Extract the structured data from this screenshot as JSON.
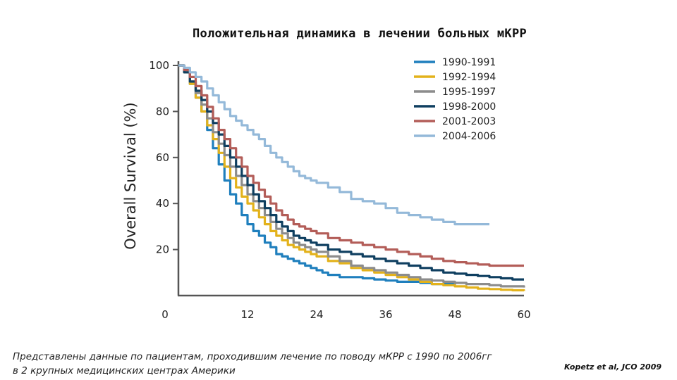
{
  "title": "Положительная динамика в лечении больных мКРР",
  "caption": "Представлены данные по пациентам, проходившим лечение по поводу мКРР с 1990 по 2006гг в 2 крупных медицинских центрах Америки",
  "citation": "Kopetz et al, JCO 2009",
  "chart_data": {
    "type": "line",
    "step": true,
    "ylabel": "Overall Survival (%)",
    "xlabel": "",
    "xlim": [
      0,
      60
    ],
    "ylim": [
      0,
      100
    ],
    "xticks": [
      0,
      12,
      24,
      36,
      48,
      60
    ],
    "yticks": [
      20,
      40,
      60,
      80,
      100
    ],
    "grid": false,
    "legend_position": "top-right",
    "series": [
      {
        "name": "1990-1991",
        "color": "#1f7fbd",
        "x": [
          0,
          1,
          2,
          3,
          4,
          5,
          6,
          7,
          8,
          9,
          10,
          11,
          12,
          13,
          14,
          15,
          16,
          17,
          18,
          19,
          20,
          21,
          22,
          23,
          24,
          25,
          26,
          28,
          30,
          32,
          34,
          36,
          38,
          40,
          42,
          44,
          46,
          48
        ],
        "y": [
          100,
          97,
          92,
          86,
          80,
          72,
          64,
          57,
          50,
          44,
          40,
          35,
          31,
          28,
          26,
          23,
          21,
          18,
          17,
          16,
          15,
          14,
          13,
          12,
          11,
          10,
          9,
          8,
          8,
          7.5,
          7,
          6.5,
          6,
          6,
          5.5,
          5,
          5,
          4.5
        ]
      },
      {
        "name": "1992-1994",
        "color": "#e3b21b",
        "x": [
          0,
          1,
          2,
          3,
          4,
          5,
          6,
          7,
          8,
          9,
          10,
          11,
          12,
          13,
          14,
          15,
          16,
          17,
          18,
          19,
          20,
          21,
          22,
          23,
          24,
          26,
          28,
          30,
          32,
          34,
          36,
          38,
          40,
          42,
          44,
          46,
          48,
          50,
          52,
          54,
          56,
          58,
          60
        ],
        "y": [
          100,
          97,
          92,
          86,
          80,
          74,
          68,
          62,
          56,
          51,
          47,
          43,
          40,
          37,
          34,
          31,
          28,
          26,
          24,
          22,
          21,
          20,
          19,
          18,
          17,
          15,
          14,
          12,
          11,
          10,
          9,
          8,
          7,
          6,
          5,
          4.5,
          4,
          3.5,
          3,
          2.8,
          2.5,
          2.3,
          2
        ]
      },
      {
        "name": "1995-1997",
        "color": "#8c8c8c",
        "x": [
          0,
          1,
          2,
          3,
          4,
          5,
          6,
          7,
          8,
          9,
          10,
          11,
          12,
          13,
          14,
          15,
          16,
          17,
          18,
          19,
          20,
          21,
          22,
          23,
          24,
          26,
          28,
          30,
          32,
          34,
          36,
          38,
          40,
          42,
          44,
          46,
          48,
          50,
          52,
          54,
          56,
          58,
          60
        ],
        "y": [
          100,
          97,
          93,
          88,
          83,
          77,
          71,
          66,
          61,
          56,
          52,
          48,
          44,
          41,
          38,
          35,
          32,
          29,
          27,
          25,
          23,
          22,
          21,
          20,
          19,
          17,
          15,
          13,
          12,
          11,
          10,
          9,
          8,
          7,
          6.5,
          6,
          5.5,
          5,
          5,
          4.5,
          4,
          4,
          3.5
        ]
      },
      {
        "name": "1998-2000",
        "color": "#0f3f60",
        "x": [
          0,
          1,
          2,
          3,
          4,
          5,
          6,
          7,
          8,
          9,
          10,
          11,
          12,
          13,
          14,
          15,
          16,
          17,
          18,
          19,
          20,
          21,
          22,
          23,
          24,
          26,
          28,
          30,
          32,
          34,
          36,
          38,
          40,
          42,
          44,
          46,
          48,
          50,
          52,
          54,
          56,
          58,
          60
        ],
        "y": [
          100,
          97,
          93,
          89,
          85,
          80,
          75,
          70,
          65,
          60,
          56,
          52,
          48,
          44,
          41,
          38,
          35,
          32,
          30,
          28,
          26,
          25,
          24,
          23,
          22,
          20,
          19,
          18,
          17,
          16,
          15,
          14,
          13,
          12,
          11,
          10,
          9.5,
          9,
          8.5,
          8,
          7.5,
          7,
          7
        ]
      },
      {
        "name": "2001-2003",
        "color": "#b35d58",
        "x": [
          0,
          1,
          2,
          3,
          4,
          5,
          6,
          7,
          8,
          9,
          10,
          11,
          12,
          13,
          14,
          15,
          16,
          17,
          18,
          19,
          20,
          21,
          22,
          23,
          24,
          26,
          28,
          30,
          32,
          34,
          36,
          38,
          40,
          42,
          44,
          46,
          48,
          50,
          52,
          54,
          56,
          58,
          60
        ],
        "y": [
          100,
          98,
          95,
          91,
          87,
          82,
          77,
          72,
          68,
          64,
          60,
          56,
          52,
          49,
          46,
          43,
          40,
          37,
          35,
          33,
          31,
          30,
          29,
          28,
          27,
          25,
          24,
          23,
          22,
          21,
          20,
          19,
          18,
          17,
          16,
          15,
          14.5,
          14,
          13.5,
          13,
          13,
          13,
          13
        ]
      },
      {
        "name": "2004-2006",
        "color": "#94b9d9",
        "x": [
          0,
          1,
          2,
          3,
          4,
          5,
          6,
          7,
          8,
          9,
          10,
          11,
          12,
          13,
          14,
          15,
          16,
          17,
          18,
          19,
          20,
          21,
          22,
          23,
          24,
          26,
          28,
          30,
          32,
          34,
          36,
          38,
          40,
          42,
          44,
          46,
          48,
          50,
          52,
          54
        ],
        "y": [
          100,
          99,
          97,
          95,
          93,
          90,
          87,
          84,
          81,
          78,
          76,
          74,
          72,
          70,
          68,
          65,
          62,
          60,
          58,
          56,
          54,
          52,
          51,
          50,
          49,
          47,
          45,
          42,
          41,
          40,
          38,
          36,
          35,
          34,
          33,
          32,
          31,
          31,
          31,
          31
        ]
      }
    ]
  }
}
